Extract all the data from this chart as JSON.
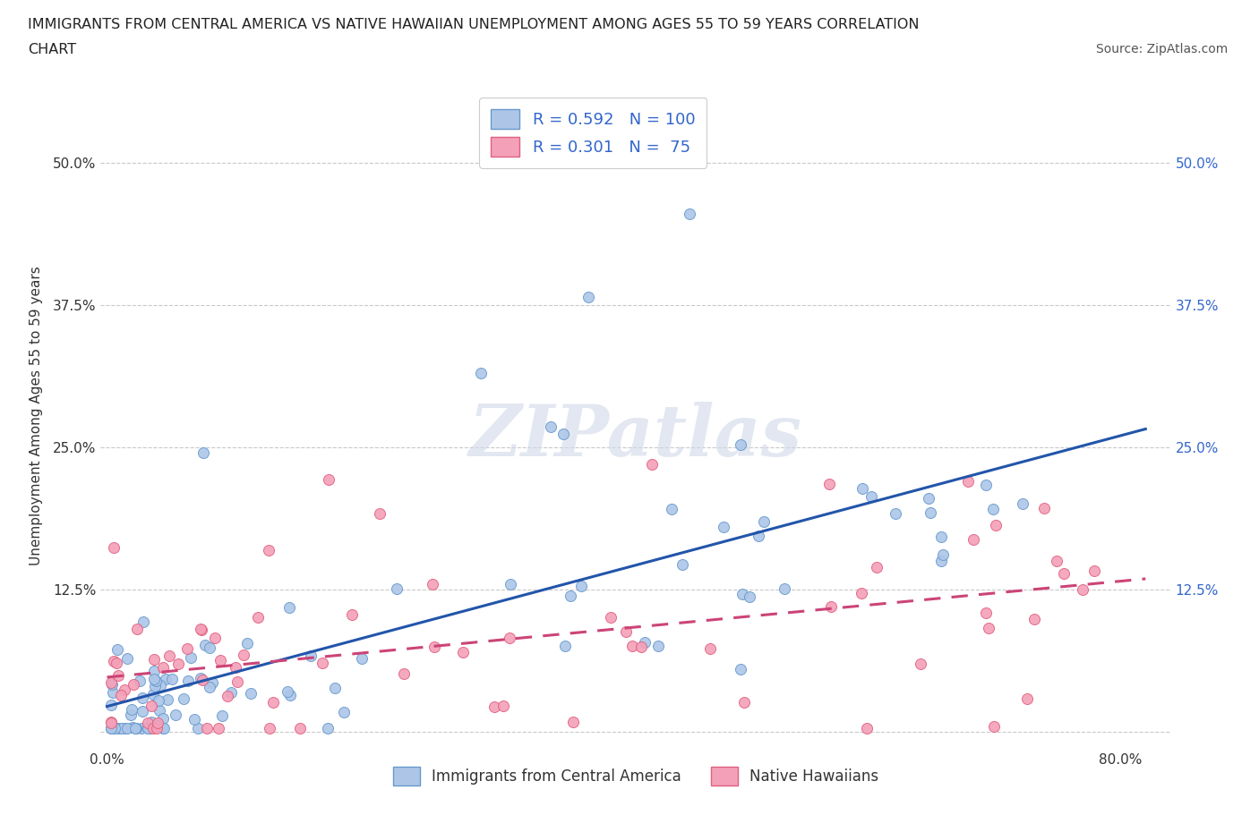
{
  "title_line1": "IMMIGRANTS FROM CENTRAL AMERICA VS NATIVE HAWAIIAN UNEMPLOYMENT AMONG AGES 55 TO 59 YEARS CORRELATION",
  "title_line2": "CHART",
  "source": "Source: ZipAtlas.com",
  "ylabel": "Unemployment Among Ages 55 to 59 years",
  "xlim": [
    -0.005,
    0.84
  ],
  "ylim": [
    -0.015,
    0.57
  ],
  "series1_color": "#adc6e8",
  "series1_edge_color": "#6699cc",
  "series2_color": "#f4a0b8",
  "series2_edge_color": "#e06080",
  "trend1_color": "#2255aa",
  "trend2_color": "#cc4477",
  "trend2_dash_color": "#aaaaaa",
  "R1": 0.592,
  "N1": 100,
  "R2": 0.301,
  "N2": 75,
  "watermark": "ZIPatlas",
  "background_color": "#ffffff",
  "grid_color": "#bbbbbb",
  "legend_label1": "Immigrants from Central America",
  "legend_label2": "Native Hawaiians",
  "label_color_blue": "#3366cc",
  "label_color_dark": "#333333"
}
